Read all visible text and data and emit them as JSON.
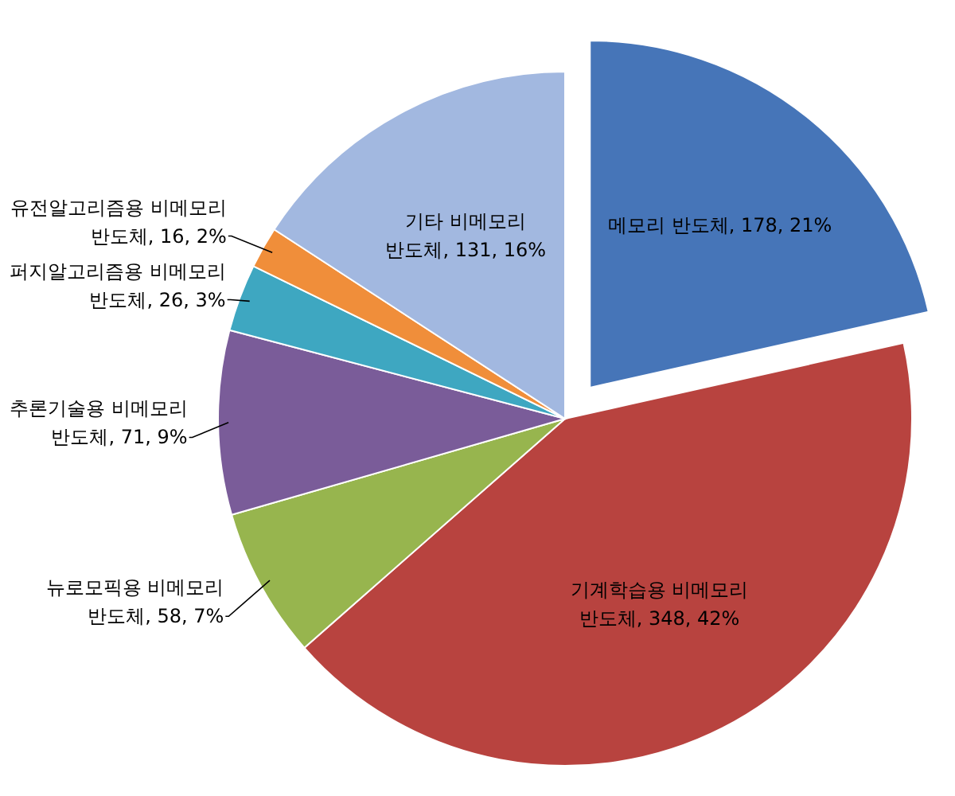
{
  "chart_data": {
    "type": "pie",
    "categories": [
      "메모리 반도체",
      "기계학습용 비메모리 반도체",
      "뉴로모픽용 비메모리 반도체",
      "추론기술용 비메모리 반도체",
      "퍼지알고리즘용 비메모리 반도체",
      "유전알고리즘용 비메모리 반도체",
      "기타 비메모리 반도체"
    ],
    "values": [
      178,
      348,
      58,
      71,
      26,
      16,
      131
    ],
    "value_labels": [
      "178, 21%",
      "348, 42%",
      "58, 7%",
      "71, 9%",
      "26, 3%",
      "16, 2%",
      "131, 16%"
    ],
    "colors": [
      "#4675b8",
      "#b8433f",
      "#97b54e",
      "#7a5c99",
      "#3ea7c1",
      "#f08e3a",
      "#a2b8e0"
    ]
  }
}
